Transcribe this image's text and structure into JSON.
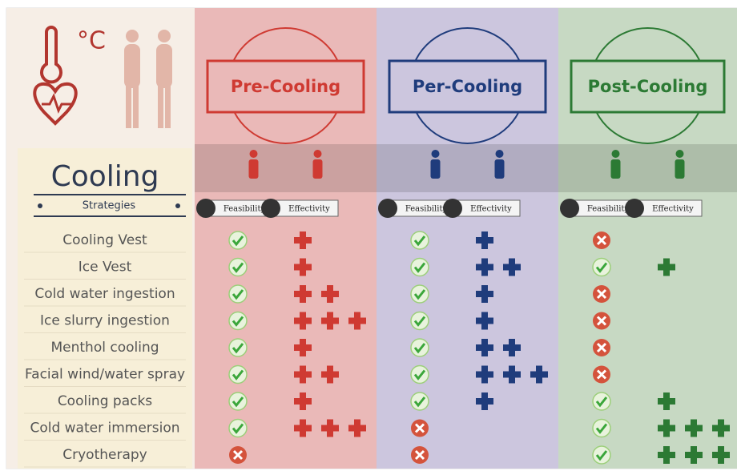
{
  "header": {
    "temp_unit": "°C",
    "title": "Cooling",
    "subtitle": "Strategies"
  },
  "phases": [
    {
      "title": "Pre-Cooling",
      "color": "#cf3a32",
      "background": "#eab9b8",
      "feasibility_label": "Feasibility",
      "effectivity_label": "Effectivity",
      "feasible": [
        true,
        true,
        true,
        true,
        true,
        true,
        true,
        true,
        false
      ],
      "effectivity": [
        1,
        1,
        2,
        3,
        1,
        2,
        1,
        3,
        0
      ]
    },
    {
      "title": "Per-Cooling",
      "color": "#1f3c7c",
      "background": "#ccc6de",
      "feasibility_label": "Feasibility",
      "effectivity_label": "Effectivity",
      "feasible": [
        true,
        true,
        true,
        true,
        true,
        true,
        true,
        false,
        false
      ],
      "effectivity": [
        1,
        2,
        1,
        1,
        2,
        3,
        1,
        0,
        0
      ]
    },
    {
      "title": "Post-Cooling",
      "color": "#2c7a34",
      "background": "#c7d9c3",
      "feasibility_label": "Feasibility",
      "effectivity_label": "Effectivity",
      "feasible": [
        false,
        true,
        false,
        false,
        false,
        false,
        true,
        true,
        true
      ],
      "effectivity": [
        0,
        1,
        0,
        0,
        0,
        0,
        1,
        3,
        3
      ]
    }
  ],
  "strategies": [
    "Cooling Vest",
    "Ice Vest",
    "Cold water ingestion",
    "Ice slurry ingestion",
    "Menthol cooling",
    "Facial wind/water spray",
    "Cooling packs",
    "Cold water immersion",
    "Cryotherapy"
  ]
}
